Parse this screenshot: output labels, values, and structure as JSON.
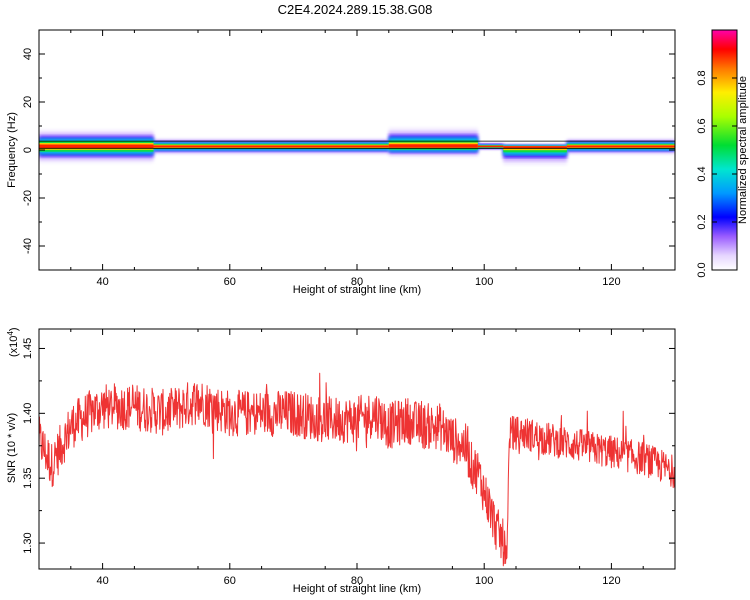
{
  "title": "C2E4.2024.289.15.38.G08",
  "colors": {
    "signal": "#ee3333",
    "axis": "#000000"
  },
  "chart_data": [
    {
      "type": "heatmap",
      "xlabel": "Height of straight line (km)",
      "ylabel": "Frequency (Hz)",
      "xlim": [
        30,
        130
      ],
      "ylim": [
        -50,
        50
      ],
      "xticks": [
        40,
        60,
        80,
        100,
        120
      ],
      "yticks": [
        40,
        20,
        0,
        -20,
        -40
      ],
      "colorbar": {
        "label": "Normalized spectral amplitude",
        "range": [
          0,
          1
        ],
        "ticks": [
          "0.0",
          "0.2",
          "0.4",
          "0.6",
          "0.8"
        ]
      },
      "band": {
        "center_hz": 1.5,
        "segments": [
          {
            "x0": 30,
            "x1": 48,
            "half_width_hz": 4
          },
          {
            "x0": 48,
            "x1": 85,
            "half_width_hz": 2
          },
          {
            "x0": 85,
            "x1": 99,
            "upper_hz": 6,
            "lower_hz": -1
          },
          {
            "x0": 99,
            "x1": 103,
            "half_width_hz": 1
          },
          {
            "x0": 103,
            "x1": 113,
            "upper_hz": 2,
            "lower_hz": -3
          },
          {
            "x0": 113,
            "x1": 130,
            "half_width_hz": 2
          }
        ]
      }
    },
    {
      "type": "line",
      "xlabel": "Height of straight line (km)",
      "ylabel": "SNR (10 * v/v)",
      "yscale_label": "(x10",
      "yscale_exp": "4",
      "yscale_close": ")",
      "xlim": [
        30,
        130
      ],
      "ylim": [
        1.28,
        1.465
      ],
      "xticks": [
        40,
        60,
        80,
        100,
        120
      ],
      "yticks": [
        "1.45",
        "1.40",
        "1.35",
        "1.30"
      ],
      "series": [
        {
          "x": [
            30,
            32,
            35,
            38,
            40,
            45,
            50,
            55,
            60,
            65,
            70,
            75,
            80,
            83,
            85,
            88,
            90,
            93,
            95,
            97,
            98,
            99,
            100,
            101,
            102,
            103,
            103.5,
            104,
            106,
            110,
            115,
            120,
            125,
            130
          ],
          "y": [
            1.38,
            1.36,
            1.39,
            1.4,
            1.405,
            1.405,
            1.4,
            1.41,
            1.4,
            1.4,
            1.4,
            1.395,
            1.395,
            1.4,
            1.39,
            1.395,
            1.39,
            1.39,
            1.38,
            1.375,
            1.36,
            1.355,
            1.34,
            1.325,
            1.31,
            1.3,
            1.285,
            1.385,
            1.385,
            1.38,
            1.375,
            1.37,
            1.365,
            1.355
          ]
        }
      ]
    }
  ]
}
